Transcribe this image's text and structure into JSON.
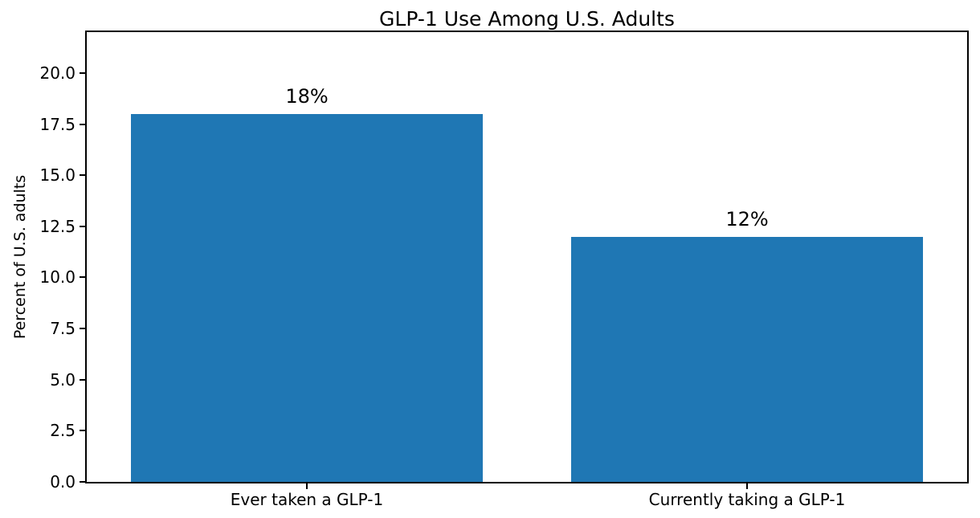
{
  "chart_data": {
    "type": "bar",
    "title": "GLP-1 Use Among U.S. Adults",
    "categories": [
      "Ever taken a GLP-1",
      "Currently taking a GLP-1"
    ],
    "values": [
      18,
      12
    ],
    "value_labels": [
      "18%",
      "12%"
    ],
    "xlabel": "",
    "ylabel": "Percent of U.S. adults",
    "ylim": [
      0,
      22
    ],
    "yticks": [
      0.0,
      2.5,
      5.0,
      7.5,
      10.0,
      12.5,
      15.0,
      17.5,
      20.0
    ],
    "ytick_labels": [
      "0.0",
      "2.5",
      "5.0",
      "7.5",
      "10.0",
      "12.5",
      "15.0",
      "17.5",
      "20.0"
    ],
    "bar_color": "#1f77b4",
    "grid": false,
    "legend": null
  }
}
